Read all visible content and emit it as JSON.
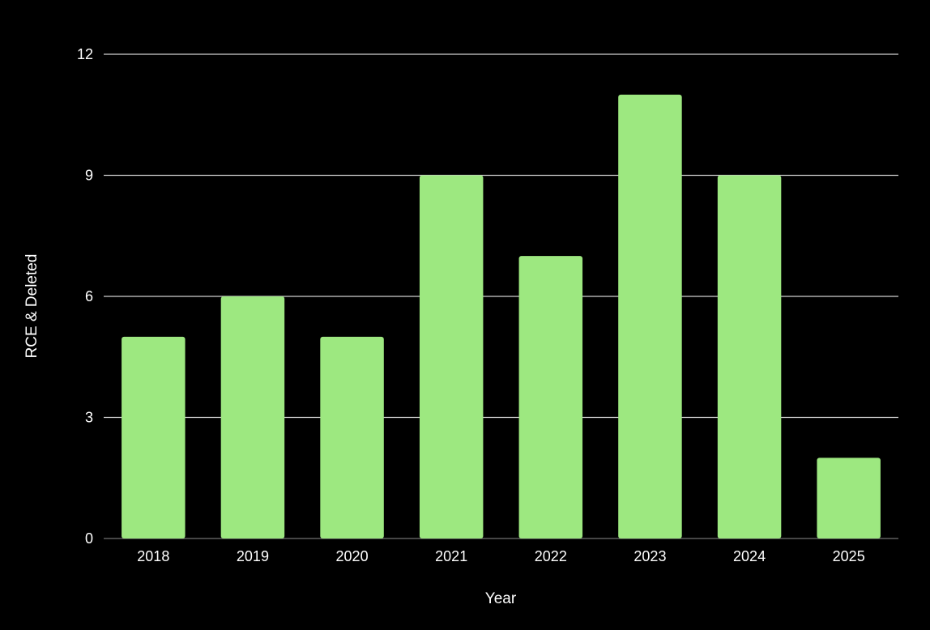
{
  "chart_data": {
    "type": "bar",
    "title": "",
    "xlabel": "Year",
    "ylabel": "RCE & Deleted",
    "categories": [
      "2018",
      "2019",
      "2020",
      "2021",
      "2022",
      "2023",
      "2024",
      "2025"
    ],
    "values": [
      5,
      6,
      5,
      9,
      7,
      11,
      9,
      2
    ],
    "ylim": [
      0,
      12
    ],
    "yticks": [
      0,
      3,
      6,
      9,
      12
    ],
    "grid": true,
    "legend": "none",
    "colors": {
      "background": "#000000",
      "bar": "#9de880",
      "gridline": "#cfcfcf",
      "baseline": "#6f6f6f",
      "text": "#ffffff"
    }
  }
}
